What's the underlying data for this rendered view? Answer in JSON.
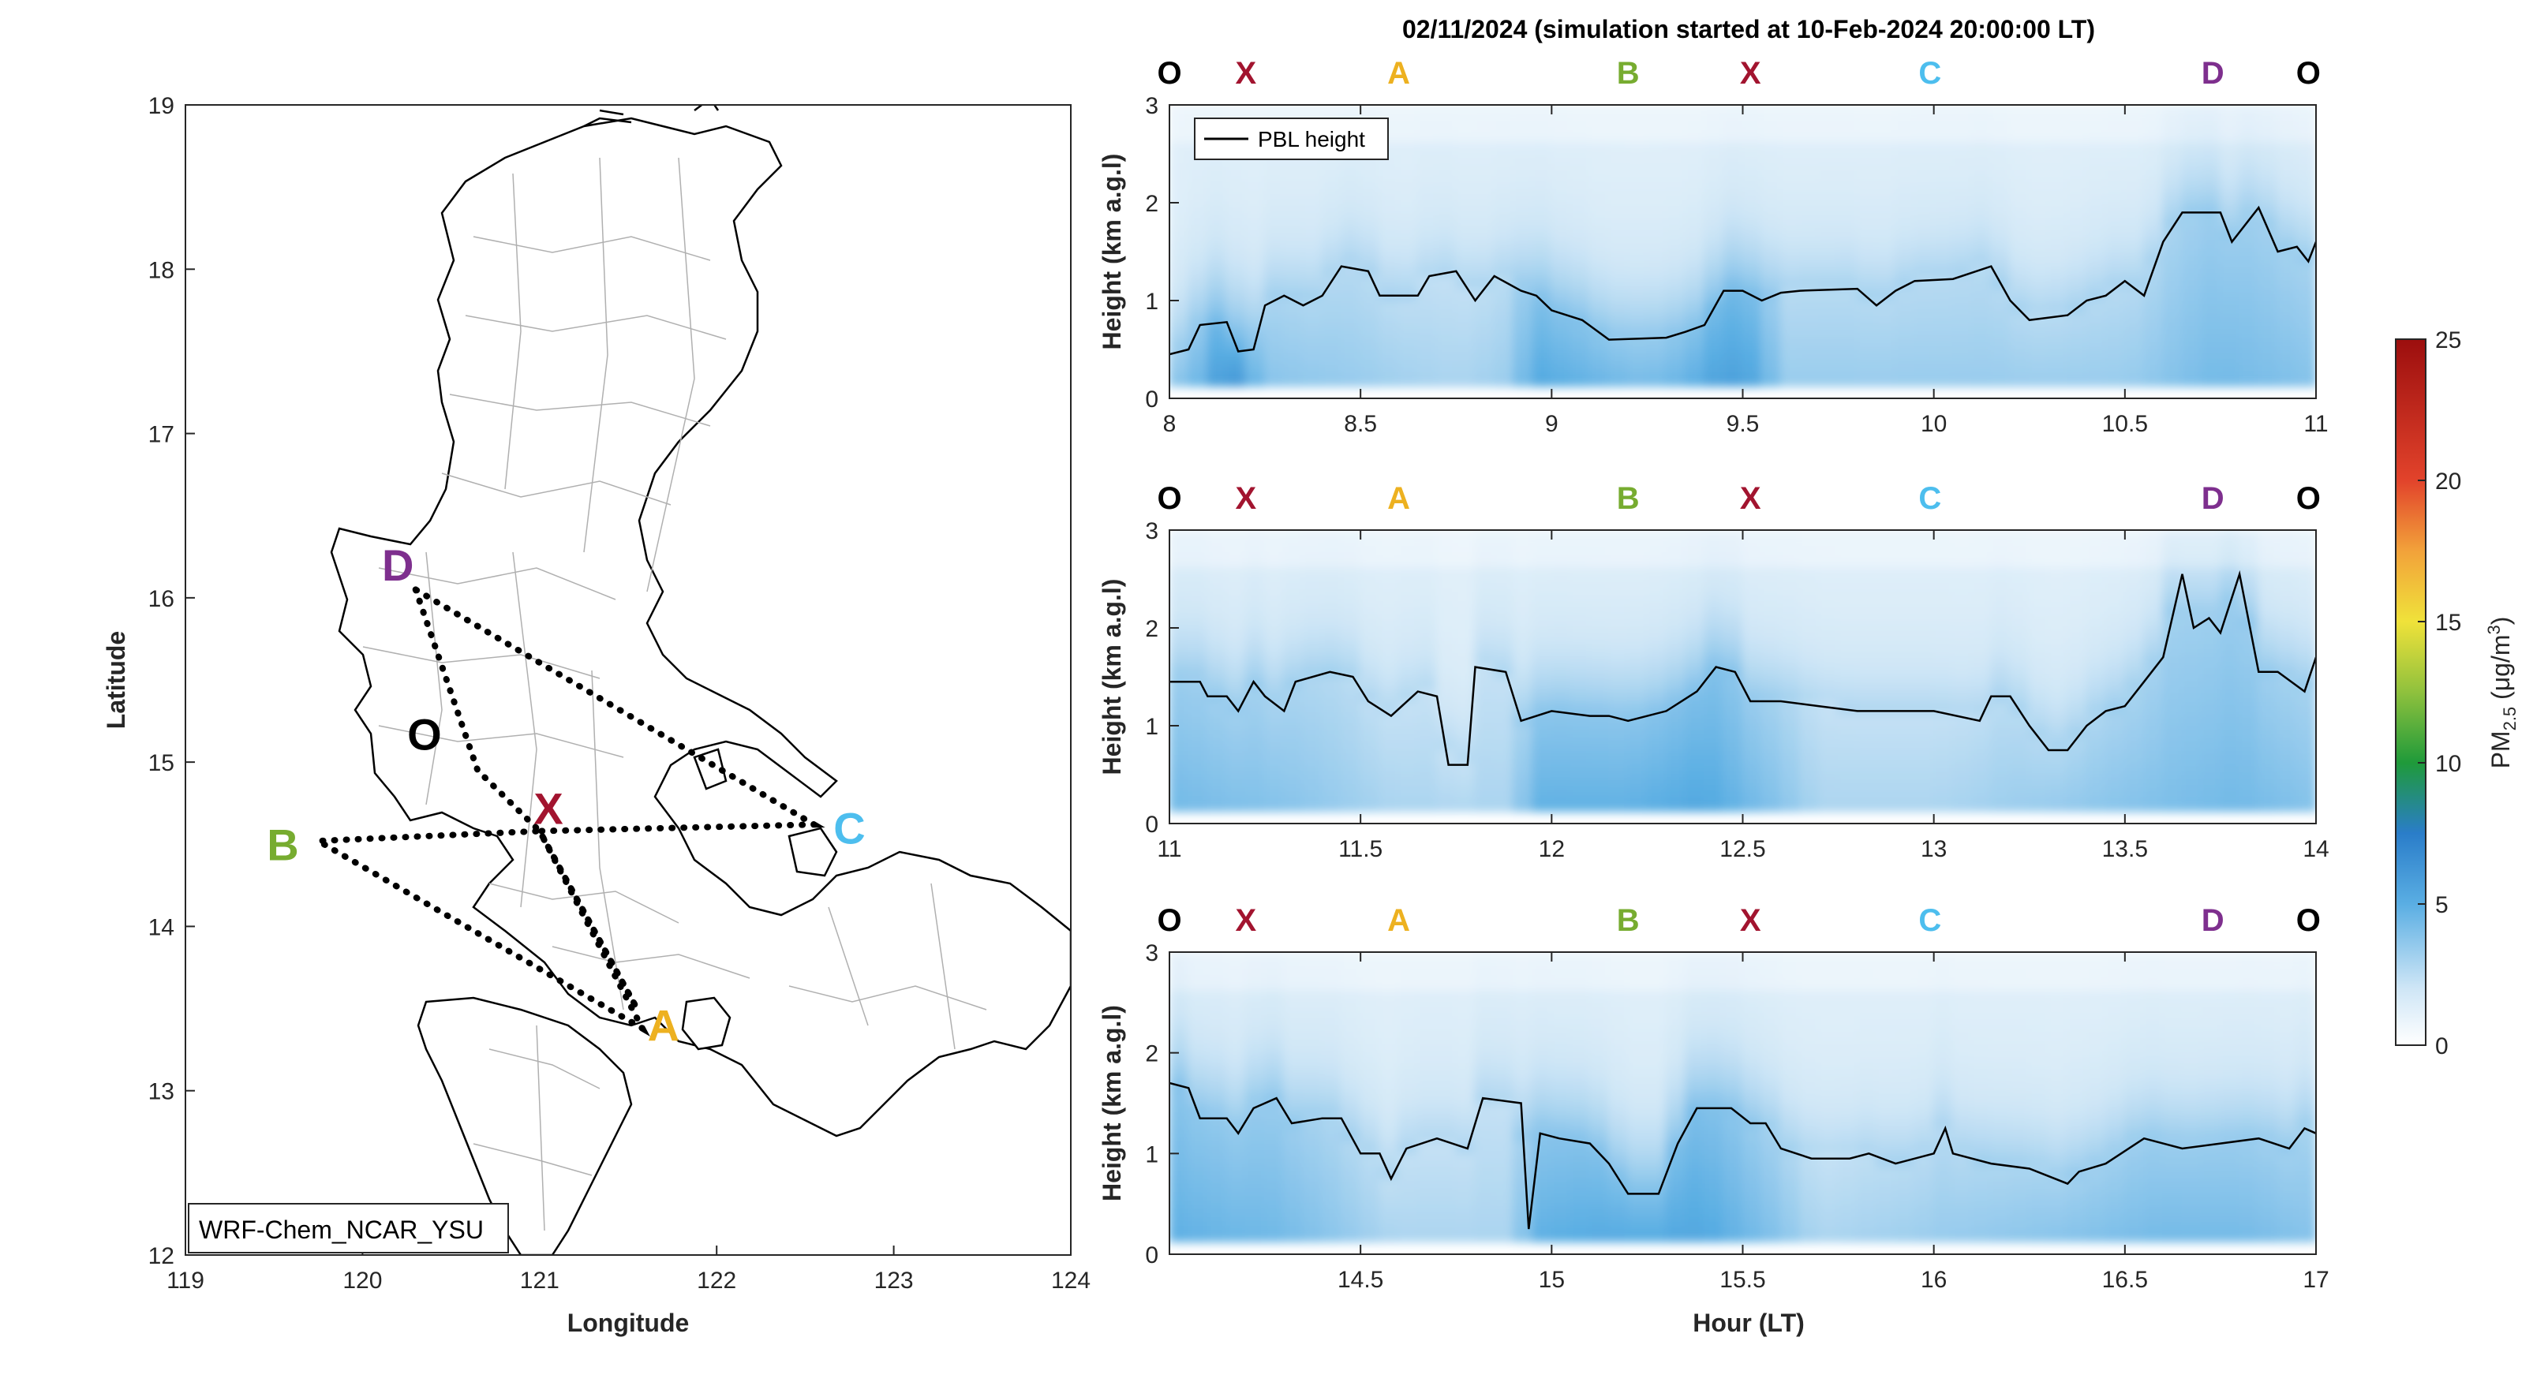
{
  "chart_data": [
    {
      "type": "map",
      "xlabel": "Longitude",
      "ylabel": "Latitude",
      "xlim": [
        119,
        124
      ],
      "ylim": [
        12,
        19
      ],
      "xticks": [
        "119",
        "120",
        "121",
        "122",
        "123",
        "124"
      ],
      "yticks": [
        "12",
        "13",
        "14",
        "15",
        "16",
        "17",
        "18",
        "19"
      ],
      "model_label": "WRF-Chem_NCAR_YSU",
      "route_color": "#000000",
      "points": [
        {
          "label": "O",
          "lon": 120.35,
          "lat": 15.17,
          "color": "#000000"
        },
        {
          "label": "X",
          "lon": 121.05,
          "lat": 14.72,
          "color": "#a2142f"
        },
        {
          "label": "A",
          "lon": 121.7,
          "lat": 13.4,
          "color": "#edb120"
        },
        {
          "label": "B",
          "lon": 119.55,
          "lat": 14.5,
          "color": "#77ac30"
        },
        {
          "label": "C",
          "lon": 122.75,
          "lat": 14.6,
          "color": "#4dbeee"
        },
        {
          "label": "D",
          "lon": 120.2,
          "lat": 16.2,
          "color": "#7e2f8e"
        }
      ],
      "route": [
        [
          120.3,
          16.05
        ],
        [
          120.65,
          14.95
        ],
        [
          121.0,
          14.58
        ],
        [
          121.55,
          13.5
        ],
        [
          121.0,
          14.58
        ],
        [
          119.75,
          14.52
        ],
        [
          121.58,
          13.38
        ],
        [
          121.0,
          14.58
        ],
        [
          122.55,
          14.62
        ],
        [
          120.3,
          16.05
        ]
      ]
    },
    {
      "type": "heatmap",
      "title": "02/11/2024 (simulation started at 10-Feb-2024 20:00:00 LT)",
      "ylabel": "Height (km a.g.l)",
      "xlim": [
        8,
        11
      ],
      "ylim": [
        0,
        3
      ],
      "xticks": [
        "8",
        "8.5",
        "9",
        "9.5",
        "10",
        "10.5",
        "11"
      ],
      "yticks": [
        "0",
        "1",
        "2",
        "3"
      ],
      "legend": "PBL height",
      "legend_location": "top-left",
      "route_markers": [
        {
          "label": "O",
          "x": 8.0,
          "color": "#000000"
        },
        {
          "label": "X",
          "x": 8.2,
          "color": "#a2142f"
        },
        {
          "label": "A",
          "x": 8.6,
          "color": "#edb120"
        },
        {
          "label": "B",
          "x": 9.2,
          "color": "#77ac30"
        },
        {
          "label": "X",
          "x": 9.52,
          "color": "#a2142f"
        },
        {
          "label": "C",
          "x": 9.99,
          "color": "#4dbeee"
        },
        {
          "label": "D",
          "x": 10.73,
          "color": "#7e2f8e"
        },
        {
          "label": "O",
          "x": 10.98,
          "color": "#000000"
        }
      ],
      "pm25_surface": [
        [
          8.0,
          4
        ],
        [
          8.1,
          5
        ],
        [
          8.15,
          7
        ],
        [
          8.2,
          6
        ],
        [
          8.25,
          4
        ],
        [
          8.5,
          3.5
        ],
        [
          8.75,
          3
        ],
        [
          8.9,
          3.5
        ],
        [
          8.95,
          5.5
        ],
        [
          9.1,
          5
        ],
        [
          9.25,
          4.5
        ],
        [
          9.35,
          5
        ],
        [
          9.45,
          6
        ],
        [
          9.55,
          5.5
        ],
        [
          9.6,
          3.5
        ],
        [
          10.0,
          3.5
        ],
        [
          10.5,
          3.5
        ],
        [
          10.75,
          4.5
        ],
        [
          11.0,
          4
        ]
      ],
      "pbl_height": [
        [
          8.0,
          0.45
        ],
        [
          8.05,
          0.5
        ],
        [
          8.08,
          0.75
        ],
        [
          8.15,
          0.78
        ],
        [
          8.18,
          0.48
        ],
        [
          8.22,
          0.5
        ],
        [
          8.25,
          0.95
        ],
        [
          8.3,
          1.05
        ],
        [
          8.35,
          0.95
        ],
        [
          8.4,
          1.05
        ],
        [
          8.45,
          1.35
        ],
        [
          8.52,
          1.3
        ],
        [
          8.55,
          1.05
        ],
        [
          8.65,
          1.05
        ],
        [
          8.68,
          1.25
        ],
        [
          8.75,
          1.3
        ],
        [
          8.8,
          1.0
        ],
        [
          8.85,
          1.25
        ],
        [
          8.92,
          1.1
        ],
        [
          8.96,
          1.05
        ],
        [
          9.0,
          0.9
        ],
        [
          9.08,
          0.8
        ],
        [
          9.15,
          0.6
        ],
        [
          9.3,
          0.62
        ],
        [
          9.35,
          0.68
        ],
        [
          9.4,
          0.75
        ],
        [
          9.45,
          1.1
        ],
        [
          9.5,
          1.1
        ],
        [
          9.55,
          1.0
        ],
        [
          9.6,
          1.08
        ],
        [
          9.65,
          1.1
        ],
        [
          9.8,
          1.12
        ],
        [
          9.85,
          0.95
        ],
        [
          9.9,
          1.1
        ],
        [
          9.95,
          1.2
        ],
        [
          10.05,
          1.22
        ],
        [
          10.15,
          1.35
        ],
        [
          10.2,
          1.0
        ],
        [
          10.25,
          0.8
        ],
        [
          10.35,
          0.85
        ],
        [
          10.4,
          1.0
        ],
        [
          10.45,
          1.05
        ],
        [
          10.5,
          1.2
        ],
        [
          10.55,
          1.05
        ],
        [
          10.6,
          1.6
        ],
        [
          10.65,
          1.9
        ],
        [
          10.75,
          1.9
        ],
        [
          10.78,
          1.6
        ],
        [
          10.85,
          1.95
        ],
        [
          10.9,
          1.5
        ],
        [
          10.95,
          1.55
        ],
        [
          10.98,
          1.4
        ],
        [
          11.0,
          1.6
        ]
      ]
    },
    {
      "type": "heatmap",
      "ylabel": "Height (km a.g.l)",
      "xlim": [
        11,
        14
      ],
      "ylim": [
        0,
        3
      ],
      "xticks": [
        "11",
        "11.5",
        "12",
        "12.5",
        "13",
        "13.5",
        "14"
      ],
      "yticks": [
        "0",
        "1",
        "2",
        "3"
      ],
      "route_markers": [
        {
          "label": "O",
          "x": 11.0,
          "color": "#000000"
        },
        {
          "label": "X",
          "x": 11.2,
          "color": "#a2142f"
        },
        {
          "label": "A",
          "x": 11.6,
          "color": "#edb120"
        },
        {
          "label": "B",
          "x": 12.2,
          "color": "#77ac30"
        },
        {
          "label": "X",
          "x": 12.52,
          "color": "#a2142f"
        },
        {
          "label": "C",
          "x": 12.99,
          "color": "#4dbeee"
        },
        {
          "label": "D",
          "x": 13.73,
          "color": "#7e2f8e"
        },
        {
          "label": "O",
          "x": 13.98,
          "color": "#000000"
        }
      ],
      "pm25_surface": [
        [
          11.0,
          4.5
        ],
        [
          11.3,
          4
        ],
        [
          11.6,
          3
        ],
        [
          11.9,
          3
        ],
        [
          11.95,
          5
        ],
        [
          12.2,
          5
        ],
        [
          12.4,
          5.5
        ],
        [
          12.6,
          4
        ],
        [
          12.7,
          3
        ],
        [
          13.0,
          3
        ],
        [
          13.5,
          4
        ],
        [
          13.8,
          4.5
        ],
        [
          14.0,
          4
        ]
      ],
      "pbl_height": [
        [
          11.0,
          1.45
        ],
        [
          11.08,
          1.45
        ],
        [
          11.1,
          1.3
        ],
        [
          11.15,
          1.3
        ],
        [
          11.18,
          1.15
        ],
        [
          11.22,
          1.45
        ],
        [
          11.25,
          1.3
        ],
        [
          11.3,
          1.15
        ],
        [
          11.33,
          1.45
        ],
        [
          11.42,
          1.55
        ],
        [
          11.48,
          1.5
        ],
        [
          11.52,
          1.25
        ],
        [
          11.58,
          1.1
        ],
        [
          11.65,
          1.35
        ],
        [
          11.7,
          1.3
        ],
        [
          11.73,
          0.6
        ],
        [
          11.78,
          0.6
        ],
        [
          11.8,
          1.6
        ],
        [
          11.88,
          1.55
        ],
        [
          11.92,
          1.05
        ],
        [
          12.0,
          1.15
        ],
        [
          12.1,
          1.1
        ],
        [
          12.15,
          1.1
        ],
        [
          12.2,
          1.05
        ],
        [
          12.3,
          1.15
        ],
        [
          12.38,
          1.35
        ],
        [
          12.43,
          1.6
        ],
        [
          12.48,
          1.55
        ],
        [
          12.52,
          1.25
        ],
        [
          12.6,
          1.25
        ],
        [
          12.7,
          1.2
        ],
        [
          12.8,
          1.15
        ],
        [
          12.9,
          1.15
        ],
        [
          13.0,
          1.15
        ],
        [
          13.12,
          1.05
        ],
        [
          13.15,
          1.3
        ],
        [
          13.2,
          1.3
        ],
        [
          13.25,
          1.0
        ],
        [
          13.3,
          0.75
        ],
        [
          13.35,
          0.75
        ],
        [
          13.4,
          1.0
        ],
        [
          13.45,
          1.15
        ],
        [
          13.5,
          1.2
        ],
        [
          13.55,
          1.45
        ],
        [
          13.6,
          1.7
        ],
        [
          13.65,
          2.55
        ],
        [
          13.68,
          2.0
        ],
        [
          13.72,
          2.1
        ],
        [
          13.75,
          1.95
        ],
        [
          13.8,
          2.55
        ],
        [
          13.85,
          1.55
        ],
        [
          13.9,
          1.55
        ],
        [
          13.97,
          1.35
        ],
        [
          14.0,
          1.7
        ]
      ]
    },
    {
      "type": "heatmap",
      "xlabel": "Hour (LT)",
      "ylabel": "Height (km a.g.l)",
      "xlim": [
        14,
        17
      ],
      "ylim": [
        0,
        3
      ],
      "xticks": [
        "14.5",
        "15",
        "15.5",
        "16",
        "16.5",
        "17"
      ],
      "yticks": [
        "0",
        "1",
        "2",
        "3"
      ],
      "route_markers": [
        {
          "label": "O",
          "x": 14.0,
          "color": "#000000"
        },
        {
          "label": "X",
          "x": 14.2,
          "color": "#a2142f"
        },
        {
          "label": "A",
          "x": 14.6,
          "color": "#edb120"
        },
        {
          "label": "B",
          "x": 15.2,
          "color": "#77ac30"
        },
        {
          "label": "X",
          "x": 15.52,
          "color": "#a2142f"
        },
        {
          "label": "C",
          "x": 15.99,
          "color": "#4dbeee"
        },
        {
          "label": "D",
          "x": 16.73,
          "color": "#7e2f8e"
        },
        {
          "label": "O",
          "x": 16.98,
          "color": "#000000"
        }
      ],
      "pm25_surface": [
        [
          14.0,
          5
        ],
        [
          14.3,
          4.5
        ],
        [
          14.6,
          3
        ],
        [
          14.9,
          3
        ],
        [
          14.95,
          5
        ],
        [
          15.2,
          5.5
        ],
        [
          15.4,
          5.5
        ],
        [
          15.6,
          4
        ],
        [
          15.7,
          3
        ],
        [
          16.0,
          3.5
        ],
        [
          16.3,
          4
        ],
        [
          16.6,
          4.5
        ],
        [
          16.8,
          4.5
        ],
        [
          17.0,
          4
        ]
      ],
      "pbl_height": [
        [
          14.0,
          1.7
        ],
        [
          14.05,
          1.65
        ],
        [
          14.08,
          1.35
        ],
        [
          14.15,
          1.35
        ],
        [
          14.18,
          1.2
        ],
        [
          14.22,
          1.45
        ],
        [
          14.28,
          1.55
        ],
        [
          14.32,
          1.3
        ],
        [
          14.4,
          1.35
        ],
        [
          14.45,
          1.35
        ],
        [
          14.5,
          1.0
        ],
        [
          14.55,
          1.0
        ],
        [
          14.58,
          0.75
        ],
        [
          14.62,
          1.05
        ],
        [
          14.7,
          1.15
        ],
        [
          14.78,
          1.05
        ],
        [
          14.82,
          1.55
        ],
        [
          14.92,
          1.5
        ],
        [
          14.94,
          0.25
        ],
        [
          14.97,
          1.2
        ],
        [
          15.02,
          1.15
        ],
        [
          15.1,
          1.1
        ],
        [
          15.15,
          0.9
        ],
        [
          15.2,
          0.6
        ],
        [
          15.28,
          0.6
        ],
        [
          15.33,
          1.1
        ],
        [
          15.38,
          1.45
        ],
        [
          15.47,
          1.45
        ],
        [
          15.52,
          1.3
        ],
        [
          15.56,
          1.3
        ],
        [
          15.6,
          1.05
        ],
        [
          15.68,
          0.95
        ],
        [
          15.78,
          0.95
        ],
        [
          15.83,
          1.0
        ],
        [
          15.9,
          0.9
        ],
        [
          16.0,
          1.0
        ],
        [
          16.03,
          1.25
        ],
        [
          16.05,
          1.0
        ],
        [
          16.15,
          0.9
        ],
        [
          16.25,
          0.85
        ],
        [
          16.35,
          0.7
        ],
        [
          16.38,
          0.82
        ],
        [
          16.45,
          0.9
        ],
        [
          16.55,
          1.15
        ],
        [
          16.65,
          1.05
        ],
        [
          16.75,
          1.1
        ],
        [
          16.85,
          1.15
        ],
        [
          16.93,
          1.05
        ],
        [
          16.97,
          1.25
        ],
        [
          17.0,
          1.2
        ]
      ]
    },
    {
      "type": "colorbar",
      "title": "PM",
      "title_sub": "2.5",
      "title_unit": " (μg/m",
      "title_sup": "3",
      "title_close": ")",
      "range": [
        0,
        25
      ],
      "ticks": [
        "0",
        "5",
        "10",
        "15",
        "20",
        "25"
      ],
      "colormap": [
        [
          0,
          "#ffffff"
        ],
        [
          2,
          "#cfe6f6"
        ],
        [
          5,
          "#5aaee3"
        ],
        [
          7.5,
          "#2a7dc9"
        ],
        [
          10,
          "#1f9a3a"
        ],
        [
          12.5,
          "#8fc13d"
        ],
        [
          15,
          "#f0e23a"
        ],
        [
          17.5,
          "#f2a23a"
        ],
        [
          20,
          "#e2432b"
        ],
        [
          25,
          "#9c0e0e"
        ]
      ]
    }
  ]
}
